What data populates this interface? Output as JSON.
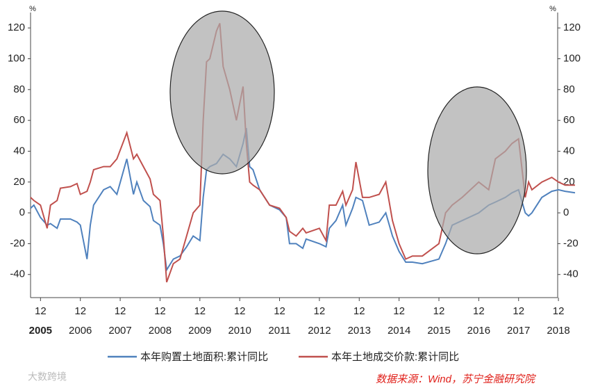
{
  "chart_data": {
    "type": "line",
    "unit_left": "%",
    "unit_right": "%",
    "x": [
      "2005-09",
      "2005-10",
      "2005-12",
      "2006-02",
      "2006-03",
      "2006-05",
      "2006-06",
      "2006-09",
      "2006-11",
      "2006-12",
      "2007-02",
      "2007-03",
      "2007-04",
      "2007-07",
      "2007-09",
      "2007-11",
      "2008-02",
      "2008-04",
      "2008-05",
      "2008-07",
      "2008-09",
      "2008-10",
      "2008-12",
      "2009-01",
      "2009-02",
      "2009-04",
      "2009-06",
      "2009-08",
      "2009-10",
      "2009-12",
      "2010-01",
      "2010-02",
      "2010-03",
      "2010-05",
      "2010-06",
      "2010-07",
      "2010-09",
      "2010-11",
      "2011-01",
      "2011-02",
      "2011-03",
      "2011-04",
      "2011-06",
      "2011-09",
      "2011-12",
      "2012-02",
      "2012-03",
      "2012-05",
      "2012-07",
      "2012-08",
      "2012-12",
      "2013-02",
      "2013-03",
      "2013-05",
      "2013-07",
      "2013-08",
      "2013-10",
      "2013-11",
      "2014-01",
      "2014-03",
      "2014-06",
      "2014-08",
      "2014-10",
      "2014-12",
      "2015-02",
      "2015-04",
      "2015-07",
      "2015-12",
      "2016-02",
      "2016-04",
      "2016-07",
      "2016-12",
      "2017-03",
      "2017-05",
      "2017-08",
      "2017-10",
      "2017-12",
      "2018-02",
      "2018-03",
      "2018-04",
      "2018-07",
      "2018-10",
      "2018-12",
      "2019-02",
      "2019-05"
    ],
    "series": [
      {
        "name": "本年购置土地面积:累计同比",
        "color": "#4f81bd",
        "values": [
          3,
          5,
          -3,
          -8,
          -7,
          -10,
          -4,
          -4,
          -6,
          -8,
          -30,
          -8,
          5,
          15,
          17,
          12,
          35,
          12,
          20,
          8,
          4,
          -5,
          -8,
          -20,
          -37,
          -30,
          -28,
          -22,
          -15,
          -18,
          10,
          28,
          30,
          32,
          35,
          38,
          35,
          30,
          45,
          55,
          30,
          28,
          15,
          5,
          2,
          -3,
          -20,
          -20,
          -23,
          -17,
          -20,
          -22,
          -10,
          -5,
          5,
          -8,
          3,
          10,
          8,
          -8,
          -6,
          0,
          -15,
          -25,
          -32,
          -32,
          -33,
          -30,
          -20,
          -8,
          -5,
          0,
          5,
          7,
          10,
          13,
          15,
          0,
          -2,
          0,
          10,
          14,
          15,
          14,
          13
        ]
      },
      {
        "name": "本年土地成交价款:累计同比",
        "color": "#c0504d",
        "values": [
          10,
          8,
          5,
          -10,
          5,
          8,
          16,
          17,
          19,
          12,
          14,
          20,
          28,
          30,
          30,
          35,
          52,
          35,
          38,
          30,
          22,
          12,
          8,
          -15,
          -45,
          -33,
          -30,
          -15,
          0,
          5,
          60,
          98,
          100,
          118,
          123,
          95,
          80,
          60,
          82,
          45,
          20,
          18,
          15,
          5,
          3,
          -3,
          -12,
          -15,
          -10,
          -13,
          -10,
          -18,
          5,
          5,
          14,
          5,
          15,
          33,
          10,
          10,
          12,
          20,
          -5,
          -20,
          -30,
          -28,
          -28,
          -20,
          0,
          5,
          10,
          20,
          15,
          35,
          40,
          45,
          48,
          10,
          20,
          15,
          20,
          23,
          20,
          18,
          18
        ]
      }
    ],
    "xlim": [
      "2005-09",
      "2019-05"
    ],
    "xticks": [
      {
        "value": "2005-12",
        "label": "12"
      },
      {
        "value": "2006-12",
        "label": "12"
      },
      {
        "value": "2007-12",
        "label": "12"
      },
      {
        "value": "2008-12",
        "label": "12"
      },
      {
        "value": "2009-12",
        "label": "12"
      },
      {
        "value": "2010-12",
        "label": "12"
      },
      {
        "value": "2011-12",
        "label": "12"
      },
      {
        "value": "2012-12",
        "label": "12"
      },
      {
        "value": "2013-12",
        "label": "12"
      },
      {
        "value": "2014-12",
        "label": "12"
      },
      {
        "value": "2015-12",
        "label": "12"
      },
      {
        "value": "2016-12",
        "label": "12"
      },
      {
        "value": "2017-12",
        "label": "12"
      },
      {
        "value": "2018-12",
        "label": "12"
      }
    ],
    "xtick_years": [
      "2005",
      "2006",
      "2007",
      "2008",
      "2009",
      "2010",
      "2011",
      "2012",
      "2013",
      "2014",
      "2015",
      "2016",
      "2017",
      "2018"
    ],
    "ylim": [
      -55,
      130
    ],
    "yticks": [
      -40,
      -20,
      0,
      20,
      40,
      60,
      80,
      100,
      120
    ],
    "y2lim": [
      -55,
      130
    ],
    "y2ticks": [
      -40,
      -20,
      0,
      20,
      40,
      60,
      80,
      100,
      120
    ],
    "grid": false,
    "source": "数据来源：Wind，苏宁金融研究院",
    "watermark": "大数跨境"
  }
}
